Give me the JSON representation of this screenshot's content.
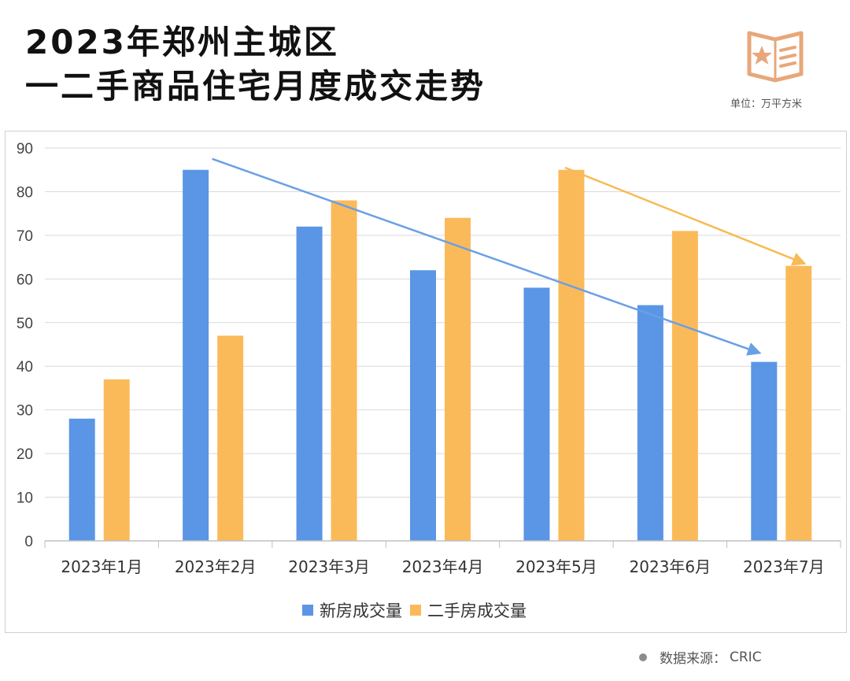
{
  "header": {
    "title_line1": "2023年郑州主城区",
    "title_line2": "一二手商品住宅月度成交走势",
    "unit_label": "单位：万平方米",
    "logo_icon": "star-document-icon",
    "logo_color": "#E8A77A"
  },
  "footer": {
    "source_label": "数据来源：",
    "source_value": "CRIC"
  },
  "chart_data": {
    "type": "bar",
    "categories": [
      "2023年1月",
      "2023年2月",
      "2023年3月",
      "2023年4月",
      "2023年5月",
      "2023年6月",
      "2023年7月"
    ],
    "series": [
      {
        "name": "新房成交量",
        "color": "#5B95E6",
        "values": [
          28,
          85,
          72,
          62,
          58,
          54,
          41
        ]
      },
      {
        "name": "二手房成交量",
        "color": "#FBBA5A",
        "values": [
          37,
          47,
          78,
          74,
          85,
          71,
          63
        ]
      }
    ],
    "ylim": [
      0,
      90
    ],
    "yticks": [
      0,
      10,
      20,
      30,
      40,
      50,
      60,
      70,
      80,
      90
    ],
    "grid": true,
    "legend": "bottom",
    "annotations": [
      {
        "type": "trend-arrow",
        "color": "#6A9FE6",
        "from": {
          "category": "2023年2月",
          "value": 87.5
        },
        "to": {
          "category": "2023年7月",
          "value": 43
        }
      },
      {
        "type": "trend-arrow",
        "color": "#F7BB55",
        "from": {
          "category": "2023年5月",
          "value": 85.5
        },
        "to": {
          "category": "2023年7月",
          "value": 63.5
        }
      }
    ]
  }
}
